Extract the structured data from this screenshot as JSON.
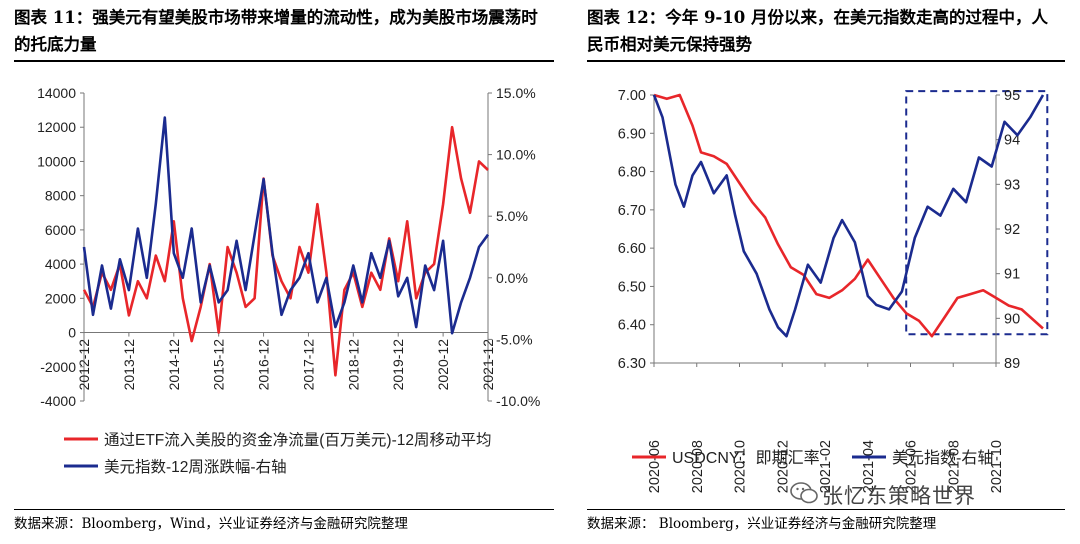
{
  "left": {
    "header": "图表 11：强美元有望美股市场带来增量的流动性，成为美股市场震荡时的托底力量",
    "source": "数据来源：Bloomberg，Wind，兴业证券经济与金融研究院整理",
    "chart_data": {
      "type": "line",
      "x_labels": [
        "2012-12",
        "2013-12",
        "2014-12",
        "2015-12",
        "2016-12",
        "2017-12",
        "2018-12",
        "2019-12",
        "2020-12",
        "2021-12"
      ],
      "y_left": {
        "min": -4000,
        "max": 14000,
        "step": 2000,
        "ticks": [
          "-4000",
          "-2000",
          "0",
          "2000",
          "4000",
          "6000",
          "8000",
          "10000",
          "12000",
          "14000"
        ]
      },
      "y_right": {
        "min": -10,
        "max": 15,
        "step": 5,
        "ticks": [
          "-10.0%",
          "-5.0%",
          "0.0%",
          "5.0%",
          "10.0%",
          "15.0%"
        ]
      },
      "series": [
        {
          "name": "通过ETF流入美股的资金净流量(百万美元)-12周移动平均",
          "axis": "left",
          "color": "#e8262a",
          "x": [
            0,
            0.2,
            0.4,
            0.6,
            0.8,
            1.0,
            1.2,
            1.4,
            1.6,
            1.8,
            2.0,
            2.2,
            2.4,
            2.6,
            2.8,
            3.0,
            3.2,
            3.4,
            3.6,
            3.8,
            4.0,
            4.2,
            4.4,
            4.6,
            4.8,
            5.0,
            5.2,
            5.4,
            5.6,
            5.8,
            6.0,
            6.2,
            6.4,
            6.6,
            6.8,
            7.0,
            7.2,
            7.4,
            7.6,
            7.8,
            8.0,
            8.2,
            8.4,
            8.6,
            8.8,
            9.0
          ],
          "values": [
            2500,
            1500,
            3500,
            2500,
            4000,
            1000,
            3000,
            2000,
            4500,
            3000,
            6500,
            2000,
            -500,
            1500,
            4000,
            0,
            5000,
            3500,
            1500,
            2000,
            9000,
            4500,
            3000,
            2000,
            5000,
            3500,
            7500,
            3500,
            -2500,
            2500,
            3500,
            1500,
            3500,
            2500,
            5500,
            3000,
            6500,
            2000,
            3500,
            4000,
            7500,
            12000,
            9000,
            7000,
            10000,
            9500
          ]
        },
        {
          "name": "美元指数-12周涨跌幅-右轴",
          "axis": "right",
          "color": "#1b2b8f",
          "x": [
            0,
            0.2,
            0.4,
            0.6,
            0.8,
            1.0,
            1.2,
            1.4,
            1.6,
            1.8,
            2.0,
            2.2,
            2.4,
            2.6,
            2.8,
            3.0,
            3.2,
            3.4,
            3.6,
            3.8,
            4.0,
            4.2,
            4.4,
            4.6,
            4.8,
            5.0,
            5.2,
            5.4,
            5.6,
            5.8,
            6.0,
            6.2,
            6.4,
            6.6,
            6.8,
            7.0,
            7.2,
            7.4,
            7.6,
            7.8,
            8.0,
            8.2,
            8.4,
            8.6,
            8.8,
            9.0
          ],
          "values": [
            2.5,
            -3,
            1,
            -2.5,
            1.5,
            -1,
            4,
            0,
            6,
            13,
            2,
            0,
            4,
            -2,
            1,
            -2,
            -1,
            3,
            -1,
            3.5,
            8,
            2,
            -3,
            -1,
            0,
            2,
            -2,
            0,
            -4,
            -2,
            1,
            -2,
            2,
            0,
            3,
            -1.5,
            0,
            -4,
            1,
            -1,
            3,
            -4.5,
            -2,
            0,
            2.5,
            3.5
          ]
        }
      ]
    }
  },
  "right": {
    "header": "图表 12：今年 9-10 月份以来，在美元指数走高的过程中，人民币相对美元保持强势",
    "source": "数据来源：  Bloomberg，兴业证券经济与金融研究院整理",
    "chart_data": {
      "type": "line",
      "x_labels": [
        "2020-06",
        "2020-08",
        "2020-10",
        "2020-12",
        "2021-02",
        "2021-04",
        "2021-06",
        "2021-08",
        "2021-10"
      ],
      "y_left": {
        "min": 6.3,
        "max": 7.0,
        "step": 0.1,
        "ticks": [
          "6.30",
          "6.40",
          "6.50",
          "6.60",
          "6.70",
          "6.80",
          "6.90",
          "7.00"
        ]
      },
      "y_right": {
        "min": 89,
        "max": 95,
        "step": 1,
        "ticks": [
          "89",
          "90",
          "91",
          "92",
          "93",
          "94",
          "95"
        ]
      },
      "series": [
        {
          "name": "USDCNY：即期汇率",
          "axis": "left",
          "color": "#e8262a",
          "x": [
            0,
            0.3,
            0.6,
            0.9,
            1.1,
            1.4,
            1.7,
            2.0,
            2.3,
            2.6,
            2.9,
            3.2,
            3.5,
            3.8,
            4.1,
            4.4,
            4.7,
            5.0,
            5.3,
            5.6,
            5.9,
            6.2,
            6.5,
            6.8,
            7.1,
            7.4,
            7.7,
            8.0,
            8.3,
            8.6,
            8.9,
            9.1
          ],
          "values": [
            7.0,
            6.99,
            7.0,
            6.92,
            6.85,
            6.84,
            6.82,
            6.77,
            6.72,
            6.68,
            6.61,
            6.55,
            6.53,
            6.48,
            6.47,
            6.49,
            6.52,
            6.57,
            6.52,
            6.47,
            6.43,
            6.41,
            6.37,
            6.42,
            6.47,
            6.48,
            6.49,
            6.47,
            6.45,
            6.44,
            6.41,
            6.39
          ]
        },
        {
          "name": "美元指数-右轴",
          "axis": "right",
          "color": "#1b2b8f",
          "x": [
            0,
            0.2,
            0.5,
            0.7,
            0.9,
            1.1,
            1.4,
            1.7,
            1.9,
            2.1,
            2.4,
            2.7,
            2.9,
            3.1,
            3.3,
            3.6,
            3.9,
            4.2,
            4.4,
            4.7,
            5.0,
            5.2,
            5.5,
            5.8,
            6.1,
            6.4,
            6.7,
            7.0,
            7.3,
            7.6,
            7.9,
            8.2,
            8.5,
            8.8,
            9.1
          ],
          "values": [
            95,
            94.5,
            93,
            92.5,
            93.2,
            93.5,
            92.8,
            93.2,
            92.3,
            91.5,
            91,
            90.2,
            89.8,
            89.6,
            90.2,
            91.2,
            90.8,
            91.8,
            92.2,
            91.7,
            90.5,
            90.3,
            90.2,
            90.6,
            91.8,
            92.5,
            92.3,
            92.9,
            92.6,
            93.6,
            93.4,
            94.4,
            94.1,
            94.5,
            95
          ]
        }
      ],
      "highlight_box": {
        "x_from": 5.9,
        "x_to": 9.2,
        "y_from": 6.375,
        "y_to": 7.01
      }
    }
  },
  "watermark": "张忆东策略世界",
  "watermark_icon": "wechat-icon"
}
